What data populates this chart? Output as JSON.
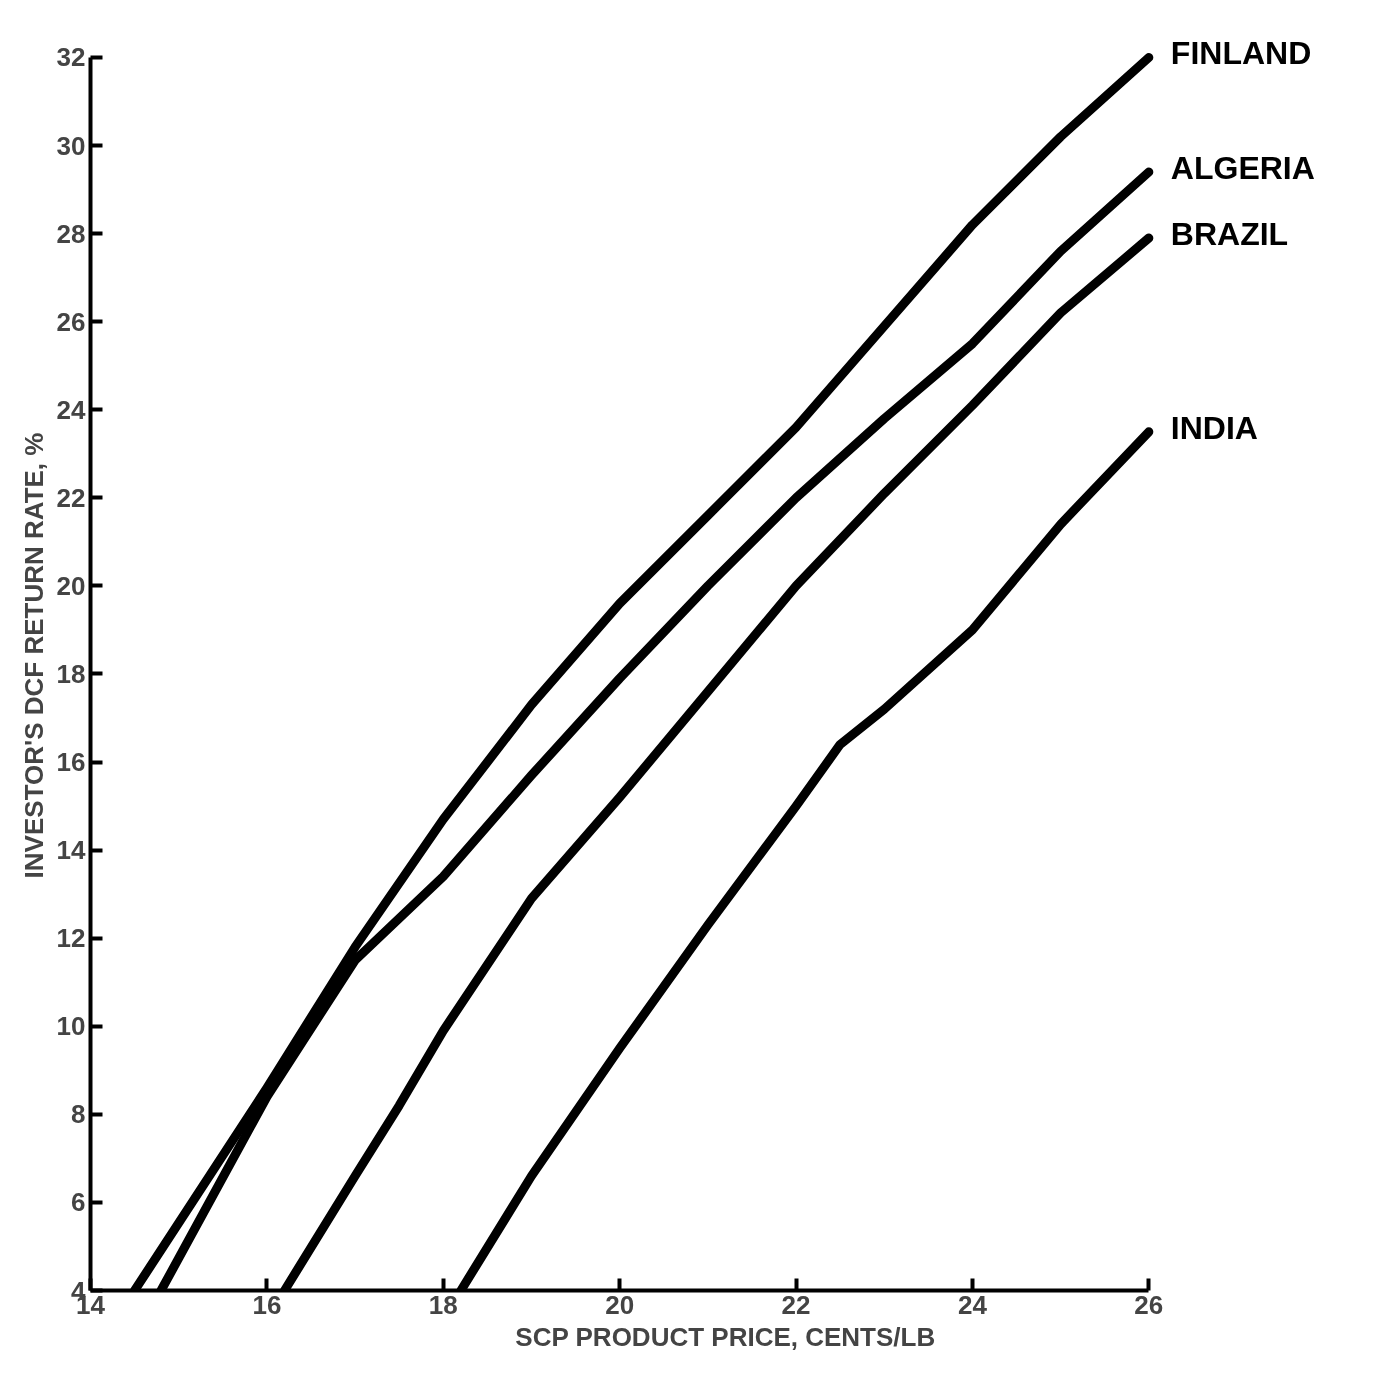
{
  "chart_data": {
    "type": "line",
    "xlabel": "SCP PRODUCT PRICE, CENTS/LB",
    "ylabel": "INVESTOR'S DCF RETURN RATE, %",
    "xlim": [
      14,
      26
    ],
    "ylim": [
      4,
      32
    ],
    "xticks": [
      14,
      16,
      18,
      20,
      22,
      24,
      26
    ],
    "yticks": [
      4,
      6,
      8,
      10,
      12,
      14,
      16,
      18,
      20,
      22,
      24,
      26,
      28,
      30,
      32
    ],
    "grid": false,
    "legend": false,
    "line_style": "solid",
    "marker": "none",
    "series": [
      {
        "name": "FINLAND",
        "color": "#000000",
        "x": [
          14.5,
          16,
          17,
          18,
          19,
          20,
          21,
          22,
          23,
          24,
          25,
          26
        ],
        "values": [
          4,
          8.6,
          11.8,
          14.7,
          17.3,
          19.6,
          21.6,
          23.6,
          25.9,
          28.2,
          30.2,
          32.0
        ]
      },
      {
        "name": "ALGERIA",
        "color": "#000000",
        "x": [
          14.8,
          16,
          17,
          18,
          19,
          20,
          21,
          22,
          23,
          24,
          25,
          26
        ],
        "values": [
          4,
          8.4,
          11.5,
          13.4,
          15.7,
          17.9,
          20.0,
          22.0,
          23.8,
          25.5,
          27.6,
          29.4
        ]
      },
      {
        "name": "BRAZIL",
        "color": "#000000",
        "x": [
          16.2,
          17,
          17.5,
          18,
          19,
          20,
          21,
          22,
          23,
          24,
          25,
          26
        ],
        "values": [
          4,
          6.6,
          8.2,
          9.9,
          12.9,
          15.2,
          17.6,
          20.0,
          22.1,
          24.1,
          26.2,
          27.9
        ]
      },
      {
        "name": "INDIA",
        "color": "#000000",
        "x": [
          18.2,
          19,
          20,
          21,
          22,
          22.5,
          23,
          24,
          25,
          26
        ],
        "values": [
          4,
          6.6,
          9.5,
          12.3,
          15.0,
          16.4,
          17.2,
          19.0,
          21.4,
          23.5
        ]
      }
    ]
  }
}
